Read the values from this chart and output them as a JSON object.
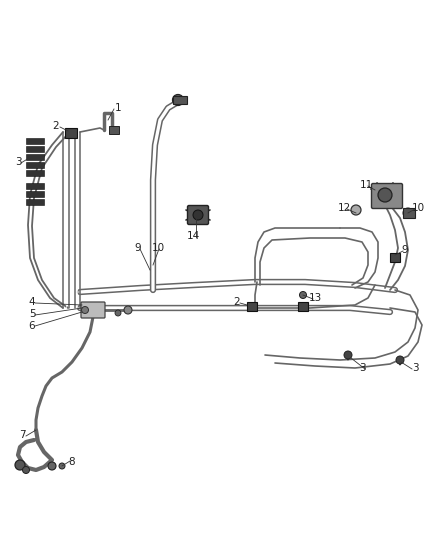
{
  "bg_color": "#ffffff",
  "line_color": "#555555",
  "dark_color": "#222222",
  "figsize": [
    4.38,
    5.33
  ],
  "dpi": 100,
  "tube_color": "#666666",
  "clip_color": "#333333",
  "component_color": "#444444"
}
